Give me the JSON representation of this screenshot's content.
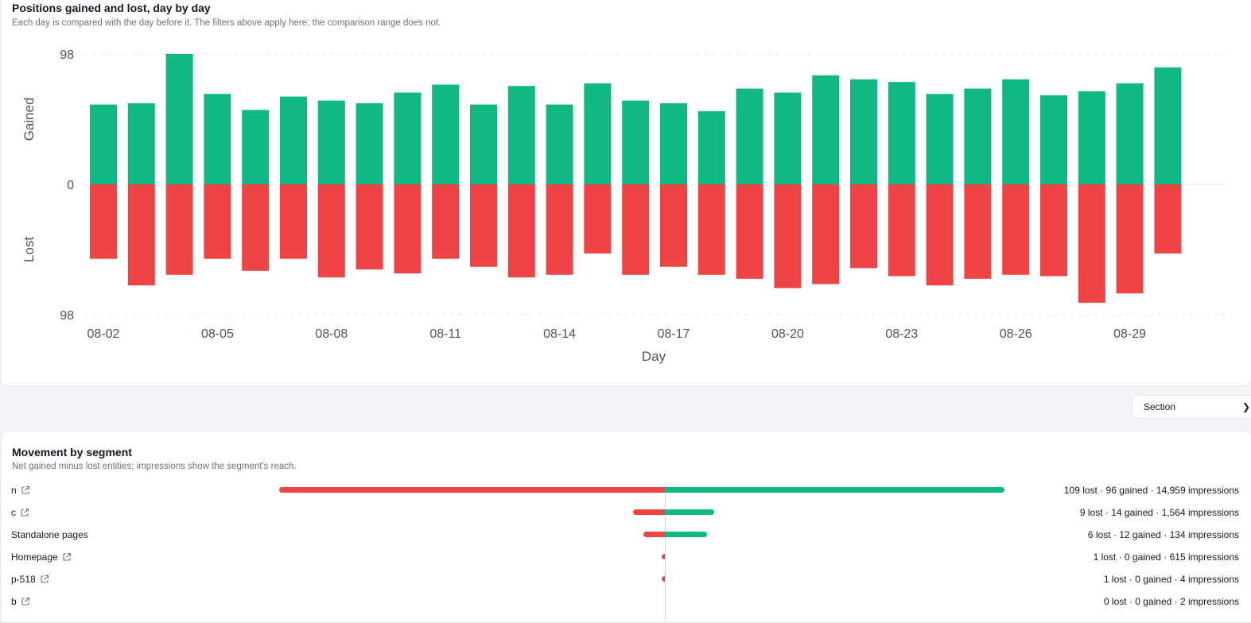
{
  "top_card": {
    "title": "Positions gained and lost, day by day",
    "subtitle": "Each day is compared with the day before it. The filters above apply here; the comparison range does not."
  },
  "chart_data": {
    "type": "bar",
    "title": "Positions gained and lost, day by day",
    "xlabel": "Day",
    "ylabel_top": "Gained",
    "ylabel_bottom": "Lost",
    "ylim": [
      -98,
      98
    ],
    "y_tick_labels": [
      "98",
      "0",
      "98"
    ],
    "categories": [
      "08-02",
      "08-03",
      "08-04",
      "08-05",
      "08-06",
      "08-07",
      "08-08",
      "08-09",
      "08-10",
      "08-11",
      "08-12",
      "08-13",
      "08-14",
      "08-15",
      "08-16",
      "08-17",
      "08-18",
      "08-19",
      "08-20",
      "08-21",
      "08-22",
      "08-23",
      "08-24",
      "08-25",
      "08-26",
      "08-27",
      "08-28",
      "08-29",
      "08-30"
    ],
    "x_tick_labels": [
      "08-02",
      "08-05",
      "08-08",
      "08-11",
      "08-14",
      "08-17",
      "08-20",
      "08-23",
      "08-26",
      "08-29"
    ],
    "series": [
      {
        "name": "Gained",
        "color": "#10b981",
        "values": [
          60,
          61,
          98,
          68,
          56,
          66,
          63,
          61,
          69,
          75,
          60,
          74,
          60,
          76,
          63,
          61,
          55,
          72,
          69,
          82,
          79,
          77,
          68,
          72,
          79,
          67,
          70,
          76,
          88
        ]
      },
      {
        "name": "Lost",
        "color": "#ef4444",
        "values": [
          56,
          76,
          68,
          56,
          65,
          56,
          70,
          64,
          67,
          56,
          62,
          70,
          68,
          52,
          68,
          62,
          68,
          71,
          78,
          75,
          63,
          69,
          76,
          71,
          68,
          69,
          89,
          82,
          52
        ]
      }
    ],
    "grid": true
  },
  "section_select": {
    "value": "Section"
  },
  "bottom_card": {
    "title": "Movement by segment",
    "subtitle": "Net gained minus lost entities; impressions show the segment's reach."
  },
  "segments_max": 109,
  "segments": [
    {
      "label": "n",
      "external": true,
      "lost": 109,
      "gained": 96,
      "stats": "109 lost · 96 gained · 14,959 impressions"
    },
    {
      "label": "c",
      "external": true,
      "lost": 9,
      "gained": 14,
      "stats": "9 lost · 14 gained · 1,564 impressions"
    },
    {
      "label": "Standalone pages",
      "external": false,
      "lost": 6,
      "gained": 12,
      "stats": "6 lost · 12 gained · 134 impressions"
    },
    {
      "label": "Homepage",
      "external": true,
      "lost": 1,
      "gained": 0,
      "stats": "1 lost · 0 gained · 615 impressions"
    },
    {
      "label": "p-518",
      "external": true,
      "lost": 1,
      "gained": 0,
      "stats": "1 lost · 0 gained · 4 impressions"
    },
    {
      "label": "b",
      "external": true,
      "lost": 0,
      "gained": 0,
      "stats": "0 lost · 0 gained · 2 impressions"
    }
  ]
}
